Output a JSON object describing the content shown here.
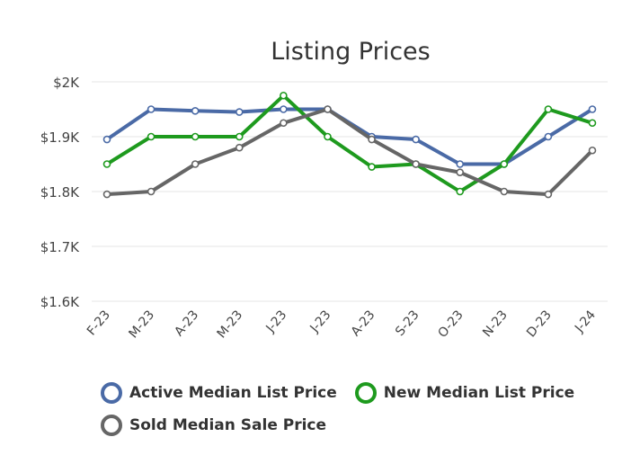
{
  "chart_data": {
    "type": "line",
    "title": "Listing Prices",
    "categories": [
      "F-23",
      "M-23",
      "A-23",
      "M-23",
      "J-23",
      "J-23",
      "A-23",
      "S-23",
      "O-23",
      "N-23",
      "D-23",
      "J-24"
    ],
    "y_ticks": [
      "$1.6K",
      "$1.7K",
      "$1.8K",
      "$1.9K",
      "$2K"
    ],
    "ylim": [
      1600,
      2000
    ],
    "grid": true,
    "legend_position": "bottom",
    "series": [
      {
        "name": "Active Median List Price",
        "color": "#4a6aa6",
        "values": [
          1895,
          1950,
          1947,
          1945,
          1950,
          1950,
          1900,
          1895,
          1850,
          1850,
          1900,
          1950
        ]
      },
      {
        "name": "New Median List Price",
        "color": "#1e9a1e",
        "values": [
          1850,
          1900,
          1900,
          1900,
          1975,
          1900,
          1845,
          1850,
          1800,
          1850,
          1950,
          1925
        ]
      },
      {
        "name": "Sold Median Sale Price",
        "color": "#666666",
        "values": [
          1795,
          1800,
          1850,
          1880,
          1925,
          1950,
          1895,
          1850,
          1835,
          1800,
          1795,
          1875
        ]
      }
    ]
  }
}
